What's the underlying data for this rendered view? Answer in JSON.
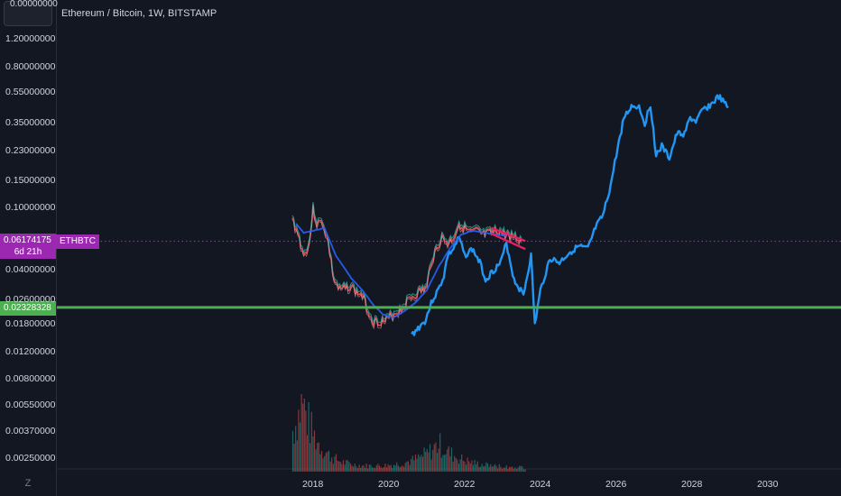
{
  "title": "Ethereum / Bitcoin, 1W, BITSTAMP",
  "top_value": "0.00000000",
  "y_ticks": [
    "1.20000000",
    "0.80000000",
    "0.55000000",
    "0.35000000",
    "0.23000000",
    "0.15000000",
    "0.10000000",
    "0.04000000",
    "0.02600000",
    "0.01800000",
    "0.01200000",
    "0.00800000",
    "0.00550000",
    "0.00370000",
    "0.00250000"
  ],
  "x_ticks": [
    "2018",
    "2020",
    "2022",
    "2024",
    "2026",
    "2028",
    "2030"
  ],
  "current_price": {
    "value": "0.06174175",
    "countdown": "6d 21h",
    "symbol": "ETHBTC",
    "color": "#9c27b0"
  },
  "level": {
    "value": "0.02328328",
    "color": "#4caf50"
  },
  "colors": {
    "price_up": "#26a69a",
    "price_down": "#ef5350",
    "projection": "#2196f3",
    "trend_lines": "#e91e63"
  },
  "scale_icon": "Z",
  "chart_data": {
    "type": "line",
    "scale": "log",
    "ylim": [
      0.0017,
      1.6
    ],
    "xlim": [
      2017.0,
      2031.0
    ],
    "series": [
      {
        "kind": "price",
        "x": [
          2017.45,
          2017.6,
          2017.75,
          2017.9,
          2018.0,
          2018.1,
          2018.25,
          2018.4,
          2018.55,
          2018.7,
          2018.85,
          2019.0,
          2019.15,
          2019.3,
          2019.45,
          2019.6,
          2019.75,
          2019.9,
          2020.0,
          2020.1,
          2020.25,
          2020.4,
          2020.55,
          2020.7,
          2020.85,
          2021.0,
          2021.1,
          2021.25,
          2021.4,
          2021.55,
          2021.7,
          2021.85,
          2022.0,
          2022.15,
          2022.3,
          2022.5,
          2022.7,
          2022.9,
          2023.1,
          2023.3,
          2023.5
        ],
        "y": [
          0.085,
          0.07,
          0.05,
          0.06,
          0.1,
          0.08,
          0.082,
          0.06,
          0.035,
          0.03,
          0.031,
          0.032,
          0.029,
          0.028,
          0.022,
          0.019,
          0.019,
          0.019,
          0.02,
          0.021,
          0.022,
          0.024,
          0.027,
          0.028,
          0.03,
          0.031,
          0.045,
          0.055,
          0.065,
          0.06,
          0.065,
          0.08,
          0.075,
          0.07,
          0.072,
          0.068,
          0.07,
          0.072,
          0.068,
          0.066,
          0.062
        ]
      },
      {
        "kind": "projection",
        "x": [
          2020.6,
          2020.8,
          2020.95,
          2021.15,
          2021.3,
          2021.45,
          2021.55,
          2021.7,
          2021.85,
          2022.0,
          2022.2,
          2022.4,
          2022.55,
          2022.75,
          2022.95,
          2023.1,
          2023.3,
          2023.55,
          2023.75,
          2023.85,
          2024.0,
          2024.25,
          2024.5,
          2024.75,
          2025.0,
          2025.25,
          2025.45,
          2025.65,
          2025.85,
          2026.0,
          2026.2,
          2026.4,
          2026.6,
          2026.75,
          2026.9,
          2027.05,
          2027.2,
          2027.4,
          2027.6,
          2027.8,
          2027.95,
          2028.1,
          2028.3,
          2028.5,
          2028.7,
          2028.85,
          2028.95
        ],
        "y": [
          0.0155,
          0.0175,
          0.019,
          0.026,
          0.03,
          0.037,
          0.05,
          0.055,
          0.065,
          0.05,
          0.055,
          0.045,
          0.035,
          0.04,
          0.045,
          0.06,
          0.035,
          0.028,
          0.05,
          0.018,
          0.03,
          0.048,
          0.045,
          0.052,
          0.057,
          0.055,
          0.075,
          0.09,
          0.14,
          0.22,
          0.38,
          0.45,
          0.45,
          0.35,
          0.46,
          0.22,
          0.25,
          0.21,
          0.3,
          0.3,
          0.38,
          0.36,
          0.43,
          0.46,
          0.52,
          0.47,
          0.44
        ]
      },
      {
        "kind": "moving-average",
        "x": [
          2017.55,
          2017.75,
          2018.0,
          2018.3,
          2018.6,
          2019.0,
          2019.3,
          2019.6,
          2019.85,
          2020.1,
          2020.4,
          2020.7,
          2021.0,
          2021.3,
          2021.6,
          2021.9,
          2022.2,
          2022.5,
          2022.8,
          2023.1
        ],
        "y": [
          0.08,
          0.07,
          0.072,
          0.075,
          0.05,
          0.036,
          0.03,
          0.024,
          0.021,
          0.02,
          0.022,
          0.025,
          0.03,
          0.042,
          0.055,
          0.068,
          0.072,
          0.07,
          0.068,
          0.067
        ]
      }
    ],
    "wedge": [
      [
        2022.7,
        0.075
      ],
      [
        2023.6,
        0.062
      ],
      [
        2022.7,
        0.069
      ],
      [
        2023.6,
        0.055
      ]
    ],
    "volume": {
      "x_range": [
        2017.45,
        2023.6
      ],
      "peak_x": 2017.7
    }
  }
}
